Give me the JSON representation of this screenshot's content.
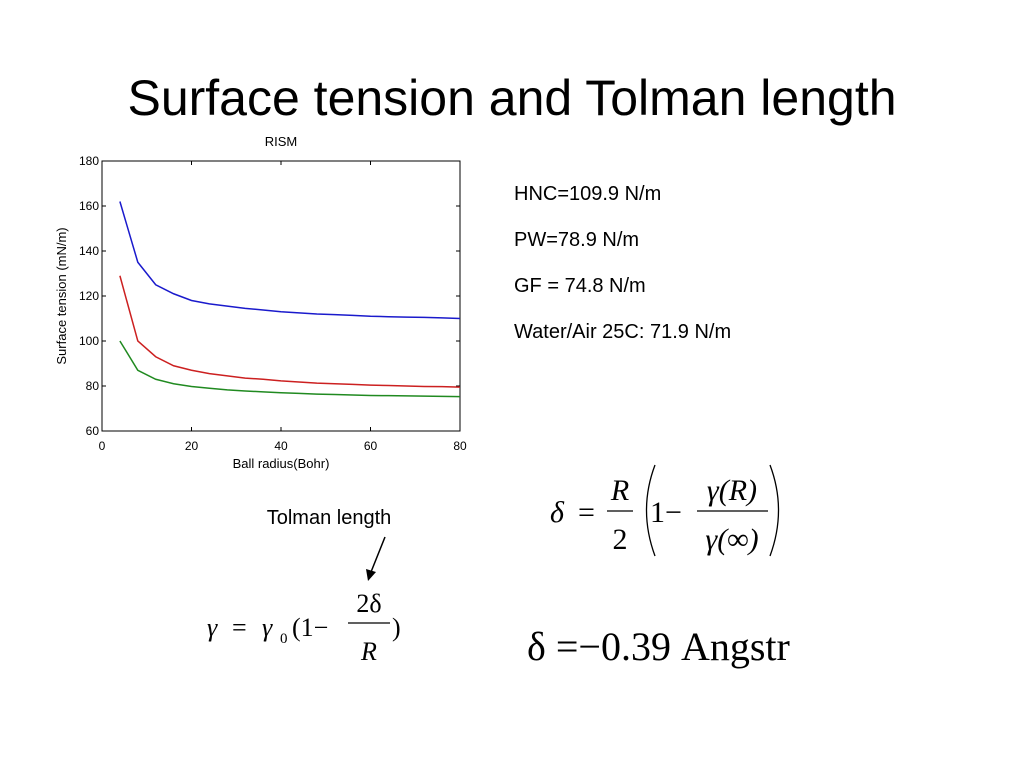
{
  "slide_title": "Surface tension and Tolman length",
  "chart_data": {
    "type": "line",
    "title": "RISM",
    "x_label": "Ball radius(Bohr)",
    "y_label": "Surface tension (mN/m)",
    "x": [
      4,
      8,
      12,
      16,
      20,
      24,
      28,
      32,
      36,
      40,
      44,
      48,
      52,
      56,
      60,
      64,
      68,
      72,
      76,
      80
    ],
    "series": [
      {
        "color": "#1a1acc",
        "values": [
          162,
          135,
          125,
          121,
          118,
          116.5,
          115.5,
          114.5,
          113.8,
          113,
          112.5,
          112,
          111.7,
          111.4,
          111,
          110.8,
          110.6,
          110.5,
          110.3,
          110
        ]
      },
      {
        "color": "#cc2020",
        "values": [
          129,
          100,
          93,
          89,
          87,
          85.5,
          84.5,
          83.5,
          83,
          82.3,
          81.8,
          81.3,
          81,
          80.7,
          80.4,
          80.2,
          80,
          79.8,
          79.7,
          79.5
        ]
      },
      {
        "color": "#208a20",
        "values": [
          100,
          87,
          83,
          81,
          79.8,
          79,
          78.3,
          77.8,
          77.4,
          77,
          76.7,
          76.4,
          76.2,
          76,
          75.8,
          75.7,
          75.6,
          75.5,
          75.4,
          75.3
        ]
      }
    ],
    "xlim": [
      0,
      80
    ],
    "ylim": [
      60,
      180
    ],
    "xticks": [
      0,
      20,
      40,
      60,
      80
    ],
    "yticks": [
      60,
      80,
      100,
      120,
      140,
      160,
      180
    ]
  },
  "notes": [
    "HNC=109.9 N/m",
    "PW=78.9 N/m",
    "GF = 74.8 N/m",
    "Water/Air 25C: 71.9 N/m"
  ],
  "annotation": "Tolman length",
  "equation_delta": {
    "lhs": "δ",
    "eq": "=",
    "num1": "R",
    "den1": "2",
    "one": "1−",
    "num2": "γ(R)",
    "den2": "γ(∞)"
  },
  "equation_gamma": {
    "lhs": "γ",
    "eq": "=",
    "g0": "γ",
    "sub": "0",
    "open": "(1−",
    "num": "2δ",
    "den": "R",
    "close": ")"
  },
  "equation_value": "δ =−0.39 Angstr"
}
